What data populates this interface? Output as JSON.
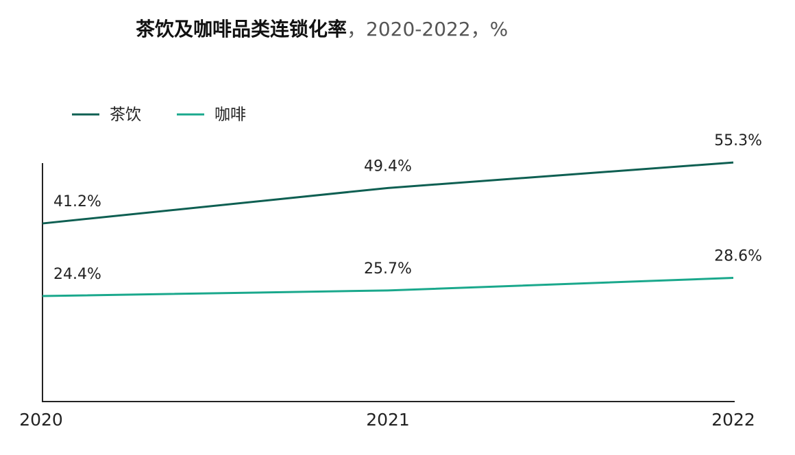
{
  "chart_data": {
    "type": "line",
    "title": "茶饮及咖啡品类连锁化率",
    "subtitle": "，2020-2022，%",
    "categories": [
      "2020",
      "2021",
      "2022"
    ],
    "series": [
      {
        "name": "茶饮",
        "color": "#0e5f52",
        "values": [
          41.2,
          49.4,
          55.3
        ],
        "value_labels": [
          "41.2%",
          "49.4%",
          "55.3%"
        ]
      },
      {
        "name": "咖啡",
        "color": "#1aa88c",
        "values": [
          24.4,
          25.7,
          28.6
        ],
        "value_labels": [
          "24.4%",
          "25.7%",
          "28.6%"
        ]
      }
    ],
    "ylim": [
      0,
      55
    ],
    "legend": "top-left"
  }
}
